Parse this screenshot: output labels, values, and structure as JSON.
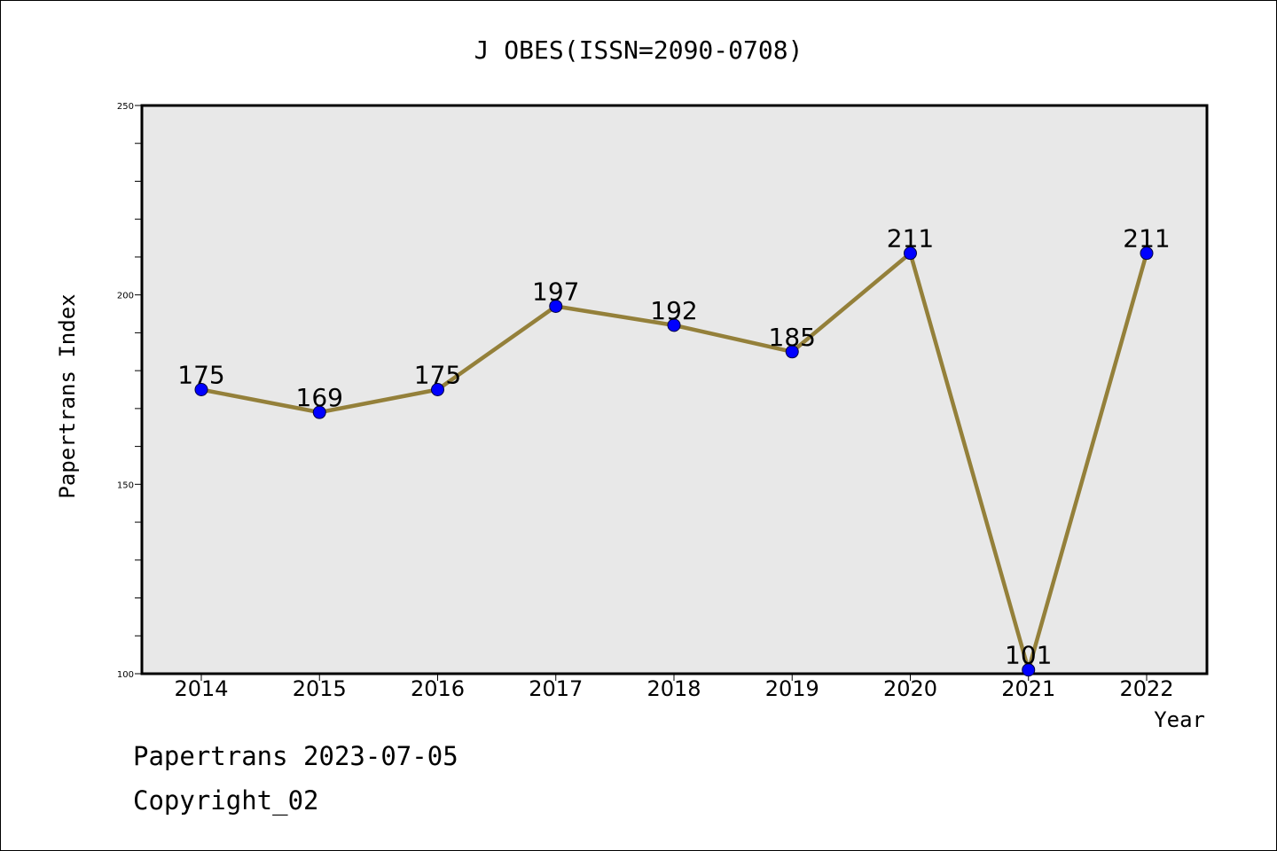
{
  "chart_data": {
    "type": "line",
    "title": "J OBES(ISSN=2090-0708)",
    "xlabel": "Year",
    "ylabel": "Papertrans Index",
    "categories": [
      "2014",
      "2015",
      "2016",
      "2017",
      "2018",
      "2019",
      "2020",
      "2021",
      "2022"
    ],
    "series": [
      {
        "values": [
          175,
          169,
          175,
          197,
          192,
          185,
          211,
          101,
          211
        ]
      }
    ],
    "data_labels": [
      "175",
      "169",
      "175",
      "197",
      "192",
      "185",
      "211",
      "101",
      "211"
    ],
    "ylim": [
      100,
      250
    ],
    "yticks": [
      "100",
      "150",
      "200",
      "250"
    ],
    "y_minor_step": 10,
    "grid": false,
    "plot_background": "#e8e8e8",
    "line_color": "#94803a",
    "marker_color": "#0000ff"
  },
  "footer": {
    "line1": "Papertrans 2023-07-05",
    "line2": "Copyright_02"
  }
}
